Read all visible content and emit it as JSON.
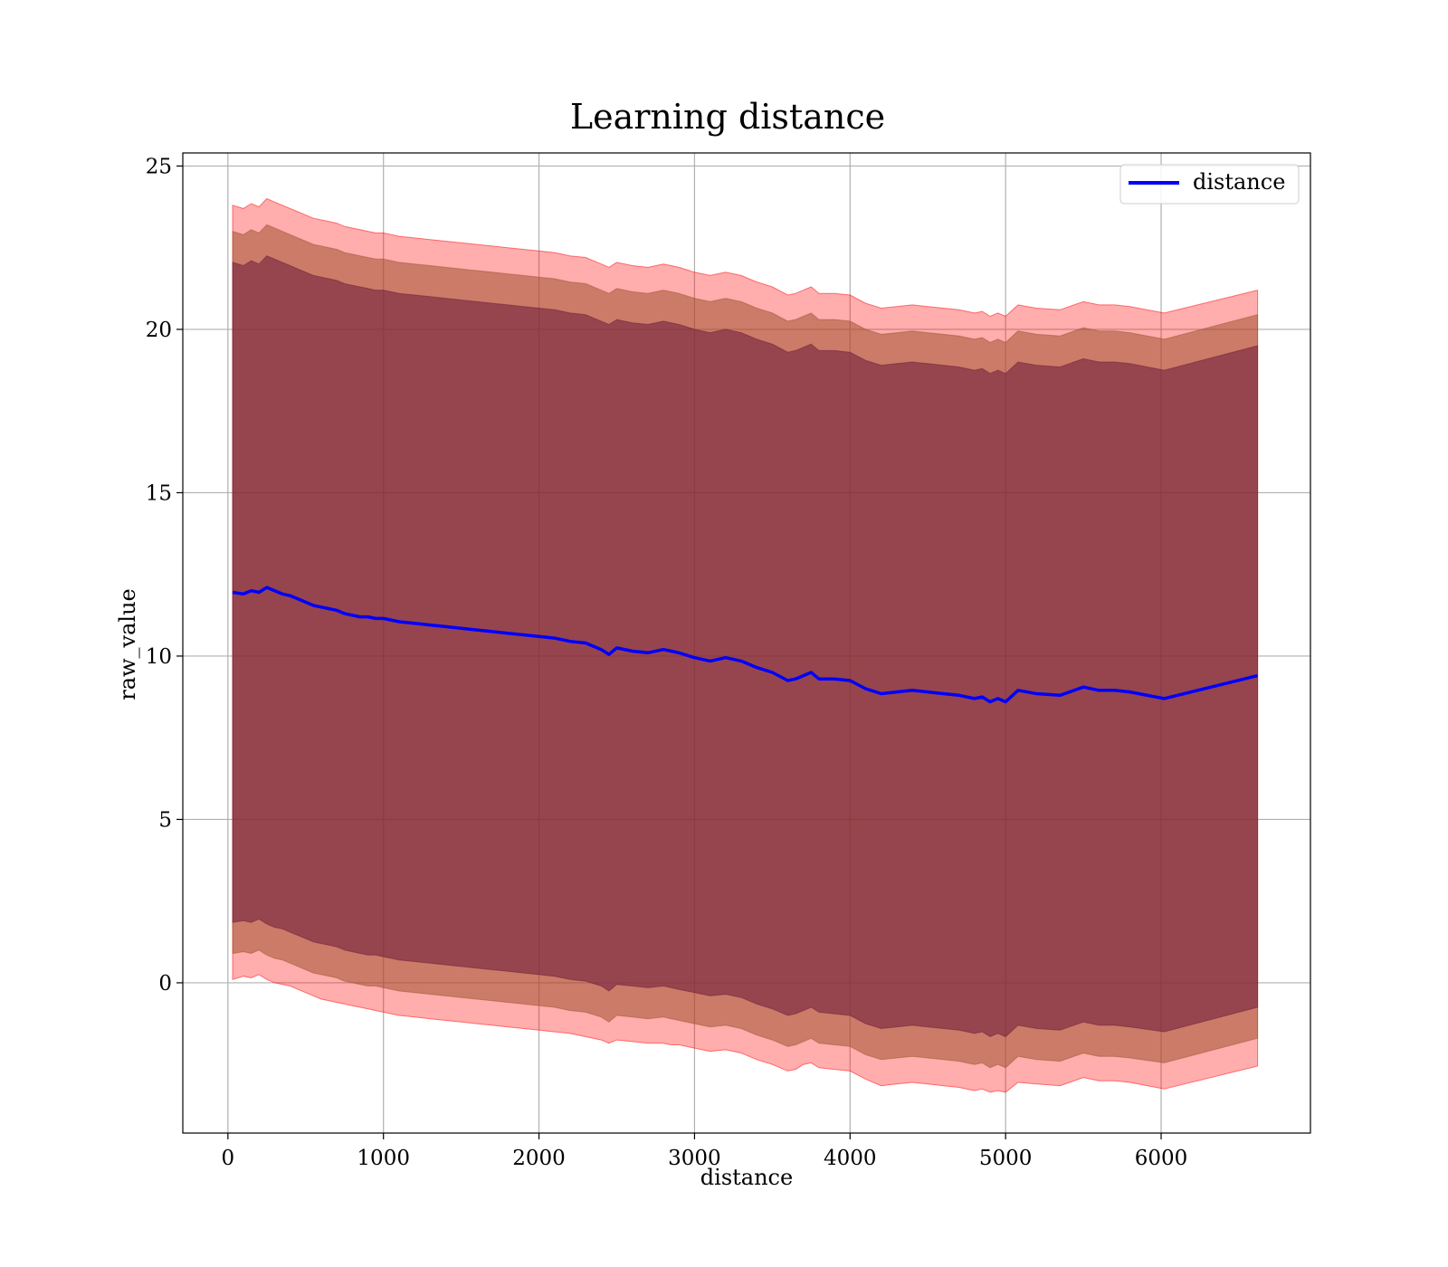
{
  "chart_data": {
    "type": "line",
    "title": "Learning distance",
    "xlabel": "distance",
    "ylabel": "raw_value",
    "xlim": [
      -290,
      6960
    ],
    "ylim": [
      -4.6,
      25.4
    ],
    "xticks": [
      "0",
      "1000",
      "2000",
      "3000",
      "4000",
      "5000",
      "6000"
    ],
    "yticks": [
      "0",
      "5",
      "10",
      "15",
      "20",
      "25"
    ],
    "grid": true,
    "legend": {
      "position": "top-right",
      "entries": [
        "distance"
      ]
    },
    "colors": {
      "line": "#0000ff",
      "band_outer": "#ff0000",
      "band_middle": "#a0522d",
      "band_inner": "#6b1a3a"
    },
    "series": [
      {
        "name": "distance",
        "x": [
          30,
          100,
          150,
          200,
          250,
          300,
          350,
          400,
          450,
          500,
          550,
          600,
          650,
          700,
          750,
          800,
          850,
          900,
          950,
          1000,
          1100,
          1200,
          1300,
          1400,
          1500,
          1600,
          1700,
          1800,
          1900,
          2000,
          2100,
          2200,
          2300,
          2400,
          2450,
          2500,
          2600,
          2700,
          2800,
          2850,
          2900,
          3000,
          3100,
          3200,
          3300,
          3400,
          3500,
          3600,
          3650,
          3700,
          3750,
          3800,
          3900,
          4000,
          4100,
          4200,
          4300,
          4400,
          4500,
          4600,
          4700,
          4800,
          4850,
          4900,
          4950,
          5000,
          5080,
          5200,
          5350,
          5500,
          5600,
          5700,
          5800,
          6020,
          6620
        ],
        "y": [
          11.95,
          11.9,
          12.0,
          11.95,
          12.1,
          12.0,
          11.9,
          11.85,
          11.75,
          11.65,
          11.55,
          11.5,
          11.45,
          11.4,
          11.3,
          11.25,
          11.2,
          11.2,
          11.15,
          11.15,
          11.05,
          11.0,
          10.95,
          10.9,
          10.85,
          10.8,
          10.75,
          10.7,
          10.65,
          10.6,
          10.55,
          10.45,
          10.4,
          10.2,
          10.05,
          10.25,
          10.15,
          10.1,
          10.2,
          10.15,
          10.1,
          9.95,
          9.85,
          9.95,
          9.85,
          9.65,
          9.5,
          9.25,
          9.3,
          9.4,
          9.5,
          9.3,
          9.3,
          9.25,
          9.0,
          8.85,
          8.9,
          8.95,
          8.9,
          8.85,
          8.8,
          8.7,
          8.75,
          8.6,
          8.7,
          8.6,
          8.95,
          8.85,
          8.8,
          9.05,
          8.95,
          8.95,
          8.9,
          8.7,
          9.4
        ],
        "bands": [
          {
            "level": "outer",
            "lower": [
              0.1,
              0.2,
              0.15,
              0.25,
              0.1,
              0.0,
              -0.05,
              -0.1,
              -0.2,
              -0.3,
              -0.4,
              -0.5,
              -0.55,
              -0.6,
              -0.65,
              -0.7,
              -0.75,
              -0.8,
              -0.85,
              -0.9,
              -1.0,
              -1.05,
              -1.1,
              -1.15,
              -1.2,
              -1.25,
              -1.3,
              -1.35,
              -1.4,
              -1.45,
              -1.5,
              -1.55,
              -1.65,
              -1.75,
              -1.85,
              -1.75,
              -1.8,
              -1.85,
              -1.85,
              -1.9,
              -1.9,
              -2.0,
              -2.1,
              -2.05,
              -2.15,
              -2.35,
              -2.5,
              -2.7,
              -2.65,
              -2.5,
              -2.45,
              -2.6,
              -2.65,
              -2.7,
              -2.95,
              -3.15,
              -3.1,
              -3.05,
              -3.1,
              -3.15,
              -3.2,
              -3.3,
              -3.25,
              -3.35,
              -3.3,
              -3.35,
              -3.05,
              -3.1,
              -3.15,
              -2.9,
              -3.0,
              -3.0,
              -3.05,
              -3.25,
              -2.55
            ],
            "upper": [
              23.8,
              23.7,
              23.85,
              23.75,
              24.0,
              23.9,
              23.8,
              23.7,
              23.6,
              23.5,
              23.4,
              23.35,
              23.3,
              23.25,
              23.15,
              23.1,
              23.05,
              23.0,
              22.95,
              22.95,
              22.85,
              22.8,
              22.75,
              22.7,
              22.65,
              22.6,
              22.55,
              22.5,
              22.45,
              22.4,
              22.35,
              22.25,
              22.2,
              22.0,
              21.9,
              22.05,
              21.95,
              21.9,
              22.0,
              21.95,
              21.9,
              21.75,
              21.65,
              21.75,
              21.65,
              21.45,
              21.3,
              21.05,
              21.1,
              21.2,
              21.3,
              21.1,
              21.1,
              21.05,
              20.8,
              20.65,
              20.7,
              20.75,
              20.7,
              20.65,
              20.6,
              20.5,
              20.55,
              20.4,
              20.5,
              20.4,
              20.75,
              20.65,
              20.6,
              20.85,
              20.75,
              20.75,
              20.7,
              20.5,
              21.2
            ]
          },
          {
            "level": "middle",
            "lower": [
              0.9,
              0.95,
              0.9,
              1.0,
              0.85,
              0.75,
              0.7,
              0.6,
              0.5,
              0.4,
              0.3,
              0.25,
              0.2,
              0.15,
              0.05,
              0.0,
              -0.05,
              -0.1,
              -0.1,
              -0.15,
              -0.25,
              -0.3,
              -0.35,
              -0.4,
              -0.45,
              -0.5,
              -0.55,
              -0.6,
              -0.65,
              -0.7,
              -0.75,
              -0.85,
              -0.9,
              -1.05,
              -1.2,
              -1.0,
              -1.05,
              -1.1,
              -1.05,
              -1.1,
              -1.15,
              -1.25,
              -1.35,
              -1.3,
              -1.4,
              -1.6,
              -1.75,
              -1.95,
              -1.9,
              -1.8,
              -1.7,
              -1.85,
              -1.9,
              -1.95,
              -2.2,
              -2.35,
              -2.3,
              -2.25,
              -2.3,
              -2.35,
              -2.4,
              -2.5,
              -2.45,
              -2.6,
              -2.5,
              -2.6,
              -2.25,
              -2.35,
              -2.4,
              -2.15,
              -2.25,
              -2.25,
              -2.3,
              -2.45,
              -1.7
            ],
            "upper": [
              23.0,
              22.9,
              23.05,
              22.95,
              23.2,
              23.1,
              23.0,
              22.9,
              22.8,
              22.7,
              22.6,
              22.55,
              22.5,
              22.45,
              22.35,
              22.3,
              22.25,
              22.2,
              22.15,
              22.15,
              22.05,
              22.0,
              21.95,
              21.9,
              21.85,
              21.8,
              21.75,
              21.7,
              21.65,
              21.6,
              21.55,
              21.45,
              21.4,
              21.2,
              21.1,
              21.25,
              21.15,
              21.1,
              21.2,
              21.15,
              21.1,
              20.95,
              20.85,
              20.95,
              20.85,
              20.65,
              20.5,
              20.25,
              20.3,
              20.4,
              20.5,
              20.3,
              20.3,
              20.25,
              20.0,
              19.85,
              19.9,
              19.95,
              19.9,
              19.85,
              19.8,
              19.7,
              19.75,
              19.6,
              19.7,
              19.6,
              19.95,
              19.85,
              19.8,
              20.05,
              19.95,
              19.95,
              19.9,
              19.7,
              20.45
            ]
          },
          {
            "level": "inner",
            "lower": [
              1.85,
              1.9,
              1.85,
              1.95,
              1.8,
              1.7,
              1.65,
              1.55,
              1.45,
              1.35,
              1.25,
              1.2,
              1.15,
              1.1,
              1.0,
              0.95,
              0.9,
              0.85,
              0.85,
              0.8,
              0.7,
              0.65,
              0.6,
              0.55,
              0.5,
              0.45,
              0.4,
              0.35,
              0.3,
              0.25,
              0.2,
              0.1,
              0.05,
              -0.1,
              -0.25,
              -0.05,
              -0.1,
              -0.15,
              -0.1,
              -0.15,
              -0.2,
              -0.3,
              -0.4,
              -0.35,
              -0.45,
              -0.65,
              -0.8,
              -1.0,
              -0.95,
              -0.85,
              -0.75,
              -0.9,
              -0.95,
              -1.0,
              -1.25,
              -1.4,
              -1.35,
              -1.3,
              -1.35,
              -1.4,
              -1.45,
              -1.55,
              -1.5,
              -1.65,
              -1.55,
              -1.65,
              -1.3,
              -1.4,
              -1.45,
              -1.2,
              -1.3,
              -1.3,
              -1.35,
              -1.5,
              -0.75
            ],
            "upper": [
              22.05,
              21.95,
              22.1,
              22.0,
              22.25,
              22.15,
              22.05,
              21.95,
              21.85,
              21.75,
              21.65,
              21.6,
              21.55,
              21.5,
              21.4,
              21.35,
              21.3,
              21.25,
              21.2,
              21.2,
              21.1,
              21.05,
              21.0,
              20.95,
              20.9,
              20.85,
              20.8,
              20.75,
              20.7,
              20.65,
              20.6,
              20.5,
              20.45,
              20.25,
              20.15,
              20.3,
              20.2,
              20.15,
              20.25,
              20.2,
              20.15,
              20.0,
              19.9,
              20.0,
              19.9,
              19.7,
              19.55,
              19.3,
              19.35,
              19.45,
              19.55,
              19.35,
              19.35,
              19.3,
              19.05,
              18.9,
              18.95,
              19.0,
              18.95,
              18.9,
              18.85,
              18.75,
              18.8,
              18.65,
              18.75,
              18.65,
              19.0,
              18.9,
              18.85,
              19.1,
              19.0,
              19.0,
              18.95,
              18.75,
              19.5
            ]
          }
        ]
      }
    ]
  }
}
